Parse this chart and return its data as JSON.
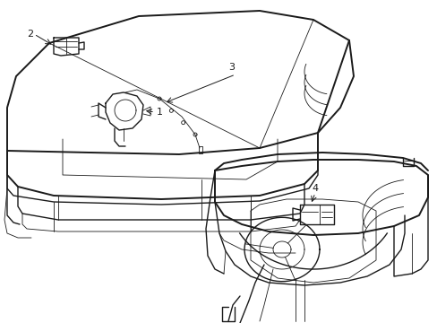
{
  "background_color": "#ffffff",
  "line_color": "#1a1a1a",
  "fig_width": 4.89,
  "fig_height": 3.6,
  "dpi": 100,
  "lw": 1.0,
  "lw_thin": 0.6,
  "lw_thick": 1.4
}
